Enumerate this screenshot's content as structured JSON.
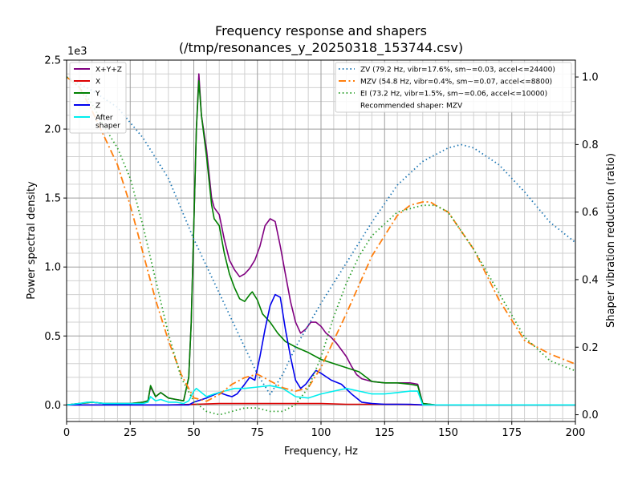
{
  "chart_data": {
    "type": "line",
    "title": "Frequency response and shapers",
    "subtitle": "(/tmp/resonances_y_20250318_153744.csv)",
    "xlabel": "Frequency, Hz",
    "ylabel": "Power spectral density",
    "y2label": "Shaper vibration reduction (ratio)",
    "y_multiplier_label": "1e3",
    "xlim": [
      0,
      200
    ],
    "ylim": [
      -0.12,
      2.5
    ],
    "y2lim": [
      -0.02,
      1.05
    ],
    "x_ticks": [
      0,
      25,
      50,
      75,
      100,
      125,
      150,
      175,
      200
    ],
    "x_tick_labels": [
      "0",
      "25",
      "50",
      "75",
      "100",
      "125",
      "150",
      "175",
      "200"
    ],
    "y_ticks": [
      0,
      0.5,
      1.0,
      1.5,
      2.0,
      2.5
    ],
    "y_tick_labels": [
      "0.0",
      "0.5",
      "1.0",
      "1.5",
      "2.0",
      "2.5"
    ],
    "y2_ticks": [
      0,
      0.2,
      0.4,
      0.6,
      0.8,
      1.0
    ],
    "y2_tick_labels": [
      "0.0",
      "0.2",
      "0.4",
      "0.6",
      "0.8",
      "1.0"
    ],
    "grid": true,
    "legend_left_placement": "upper-left",
    "legend_right_placement": "upper-right",
    "recommended_text": "Recommended shaper: MZV",
    "series": [
      {
        "name": "X+Y+Z",
        "color": "#800080",
        "axis": "left",
        "style": "solid",
        "x": [
          0,
          5,
          10,
          15,
          20,
          25,
          30,
          32,
          33,
          35,
          37,
          40,
          43,
          46,
          48,
          49,
          50,
          51,
          52,
          53,
          55,
          57,
          58,
          60,
          62,
          64,
          66,
          68,
          70,
          72,
          74,
          76,
          78,
          80,
          82,
          84,
          86,
          88,
          90,
          92,
          94,
          96,
          98,
          100,
          102,
          104,
          106,
          108,
          110,
          112,
          114,
          116,
          118,
          120,
          125,
          130,
          135,
          138,
          140,
          145,
          150,
          160,
          170,
          180,
          190,
          200
        ],
        "y": [
          0,
          0.01,
          0.02,
          0.01,
          0.01,
          0.01,
          0.02,
          0.03,
          0.13,
          0.06,
          0.09,
          0.05,
          0.04,
          0.03,
          0.2,
          0.6,
          1.3,
          2.0,
          2.4,
          2.1,
          1.85,
          1.5,
          1.43,
          1.38,
          1.2,
          1.05,
          0.98,
          0.93,
          0.95,
          0.99,
          1.05,
          1.15,
          1.3,
          1.35,
          1.33,
          1.15,
          0.95,
          0.75,
          0.6,
          0.52,
          0.55,
          0.6,
          0.6,
          0.57,
          0.52,
          0.49,
          0.45,
          0.4,
          0.35,
          0.28,
          0.22,
          0.19,
          0.18,
          0.17,
          0.16,
          0.16,
          0.16,
          0.15,
          0.01,
          0.0,
          0.0,
          0.0,
          0.0,
          0.0,
          0.0,
          0.0
        ]
      },
      {
        "name": "X",
        "color": "#dd0000",
        "axis": "left",
        "style": "solid",
        "x": [
          0,
          10,
          20,
          30,
          40,
          50,
          60,
          70,
          80,
          90,
          100,
          110,
          120,
          130,
          140,
          160,
          180,
          200
        ],
        "y": [
          0,
          0,
          0,
          0,
          0,
          0.005,
          0.01,
          0.01,
          0.01,
          0.01,
          0.01,
          0.005,
          0.005,
          0.005,
          0,
          0,
          0,
          0
        ]
      },
      {
        "name": "Y",
        "color": "#008000",
        "axis": "left",
        "style": "solid",
        "x": [
          0,
          5,
          10,
          15,
          20,
          25,
          30,
          32,
          33,
          35,
          37,
          40,
          43,
          46,
          48,
          49,
          50,
          51,
          52,
          53,
          55,
          57,
          58,
          60,
          62,
          64,
          66,
          68,
          70,
          72,
          73,
          75,
          77,
          80,
          83,
          86,
          90,
          95,
          100,
          105,
          110,
          115,
          120,
          125,
          130,
          135,
          138,
          140,
          145,
          150,
          160,
          170,
          180,
          190,
          200
        ],
        "y": [
          0,
          0.01,
          0.02,
          0.01,
          0.01,
          0.01,
          0.02,
          0.03,
          0.14,
          0.06,
          0.09,
          0.05,
          0.04,
          0.03,
          0.2,
          0.6,
          1.3,
          2.0,
          2.35,
          2.1,
          1.8,
          1.45,
          1.35,
          1.3,
          1.1,
          0.95,
          0.85,
          0.77,
          0.75,
          0.8,
          0.82,
          0.76,
          0.66,
          0.6,
          0.52,
          0.46,
          0.42,
          0.38,
          0.33,
          0.3,
          0.27,
          0.24,
          0.17,
          0.16,
          0.16,
          0.15,
          0.14,
          0.01,
          0.0,
          0.0,
          0.0,
          0.0,
          0.0,
          0.0,
          0.0
        ]
      },
      {
        "name": "Z",
        "color": "#0000ee",
        "axis": "left",
        "style": "solid",
        "x": [
          0,
          10,
          20,
          30,
          40,
          48,
          50,
          55,
          60,
          63,
          65,
          67,
          70,
          72,
          74,
          76,
          78,
          80,
          82,
          84,
          86,
          88,
          90,
          92,
          94,
          96,
          98,
          100,
          104,
          108,
          112,
          116,
          120,
          125,
          130,
          135,
          140,
          150,
          160,
          180,
          200
        ],
        "y": [
          0,
          0,
          0,
          0,
          0,
          0,
          0.02,
          0.05,
          0.09,
          0.07,
          0.06,
          0.08,
          0.15,
          0.2,
          0.18,
          0.35,
          0.55,
          0.72,
          0.8,
          0.78,
          0.55,
          0.35,
          0.18,
          0.12,
          0.15,
          0.2,
          0.25,
          0.23,
          0.18,
          0.15,
          0.08,
          0.02,
          0.01,
          0.005,
          0.005,
          0.005,
          0.0,
          0.0,
          0.0,
          0.0,
          0.0
        ]
      },
      {
        "name": "After\nshaper",
        "color": "#00eeee",
        "axis": "left",
        "style": "solid",
        "x": [
          0,
          5,
          8,
          10,
          15,
          20,
          25,
          30,
          32,
          33,
          35,
          37,
          40,
          43,
          46,
          48,
          50,
          51,
          53,
          55,
          58,
          62,
          66,
          70,
          75,
          80,
          85,
          90,
          95,
          100,
          105,
          110,
          115,
          120,
          125,
          130,
          135,
          138,
          140,
          150,
          160,
          180,
          200
        ],
        "y": [
          0,
          0.01,
          0.02,
          0.02,
          0.01,
          0.01,
          0.01,
          0.01,
          0.02,
          0.06,
          0.03,
          0.04,
          0.02,
          0.02,
          0.01,
          0.03,
          0.1,
          0.12,
          0.09,
          0.06,
          0.08,
          0.1,
          0.12,
          0.12,
          0.13,
          0.14,
          0.12,
          0.06,
          0.05,
          0.08,
          0.1,
          0.12,
          0.1,
          0.08,
          0.08,
          0.09,
          0.1,
          0.1,
          0.0,
          0.0,
          0.0,
          0.0,
          0.0
        ]
      },
      {
        "name": "ZV (79.2 Hz, vibr=17.6%, sm~=0.03, accel<=24400)",
        "color": "#1f77b4",
        "axis": "right",
        "style": "dotted",
        "x": [
          0,
          10,
          20,
          30,
          40,
          50,
          60,
          70,
          75,
          80,
          85,
          90,
          100,
          110,
          120,
          130,
          140,
          150,
          155,
          160,
          170,
          180,
          190,
          200
        ],
        "y": [
          1.0,
          0.96,
          0.91,
          0.82,
          0.7,
          0.52,
          0.36,
          0.2,
          0.12,
          0.06,
          0.12,
          0.2,
          0.33,
          0.45,
          0.57,
          0.68,
          0.75,
          0.79,
          0.8,
          0.79,
          0.74,
          0.66,
          0.57,
          0.51
        ]
      },
      {
        "name": "MZV (54.8 Hz, vibr=0.4%, sm~=0.07, accel<=8800)",
        "color": "#ff7f0e",
        "axis": "right",
        "style": "dashdot",
        "x": [
          0,
          5,
          10,
          15,
          20,
          25,
          30,
          35,
          40,
          45,
          50,
          55,
          60,
          65,
          70,
          75,
          80,
          85,
          90,
          95,
          100,
          110,
          120,
          130,
          135,
          140,
          143,
          145,
          150,
          160,
          170,
          180,
          190,
          200
        ],
        "y": [
          1.0,
          0.97,
          0.9,
          0.82,
          0.74,
          0.62,
          0.48,
          0.34,
          0.22,
          0.12,
          0.05,
          0.04,
          0.06,
          0.09,
          0.11,
          0.12,
          0.1,
          0.08,
          0.07,
          0.08,
          0.14,
          0.3,
          0.47,
          0.59,
          0.62,
          0.63,
          0.63,
          0.62,
          0.6,
          0.49,
          0.34,
          0.22,
          0.18,
          0.15
        ]
      },
      {
        "name": "EI (73.2 Hz, vibr=1.5%, sm~=0.06, accel<=10000)",
        "color": "#2ca02c",
        "axis": "right",
        "style": "dotted",
        "x": [
          0,
          5,
          10,
          15,
          20,
          25,
          30,
          35,
          40,
          45,
          50,
          55,
          60,
          65,
          70,
          75,
          80,
          85,
          90,
          95,
          100,
          105,
          110,
          115,
          120,
          130,
          140,
          145,
          150,
          160,
          170,
          180,
          190,
          200
        ],
        "y": [
          1.0,
          0.97,
          0.92,
          0.85,
          0.79,
          0.7,
          0.56,
          0.4,
          0.24,
          0.11,
          0.04,
          0.01,
          0.0,
          0.01,
          0.02,
          0.02,
          0.01,
          0.01,
          0.03,
          0.08,
          0.17,
          0.29,
          0.39,
          0.47,
          0.53,
          0.6,
          0.62,
          0.62,
          0.6,
          0.49,
          0.36,
          0.23,
          0.16,
          0.13
        ]
      }
    ]
  }
}
